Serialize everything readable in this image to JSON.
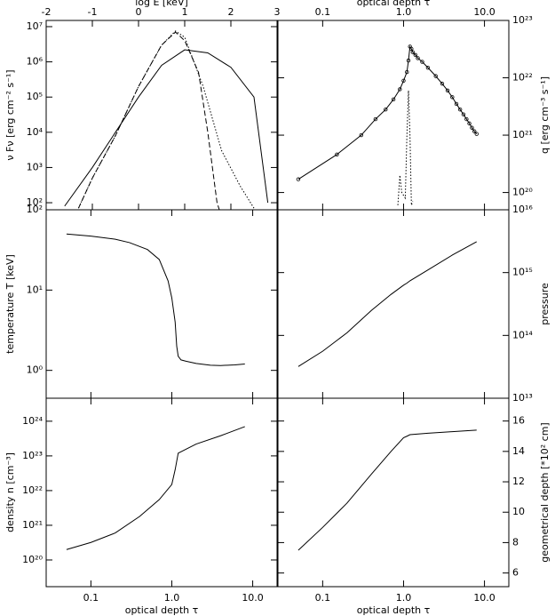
{
  "chart_data": [
    {
      "type": "line",
      "xlabel": "log E [keV]",
      "ylabel": "ν Fν [erg cm⁻² s⁻¹]",
      "xaxis": "top",
      "yaxis": "left",
      "xscale": "linear",
      "yscale": "log",
      "xlim": [
        -2,
        3
      ],
      "ylim": [
        63,
        15000000
      ],
      "xticks": [
        -2,
        -1,
        0,
        1,
        2,
        3
      ],
      "yticks": [
        {
          "value": 100,
          "label": "10²"
        },
        {
          "value": 1000,
          "label": "10³"
        },
        {
          "value": 10000,
          "label": "10⁴"
        },
        {
          "value": 100000,
          "label": "10⁵"
        },
        {
          "value": 1000000,
          "label": "10⁶"
        },
        {
          "value": 10000000,
          "label": "10⁷"
        }
      ],
      "series": [
        {
          "color": "#000000",
          "dash": "solid",
          "x": [
            -1.6,
            -1.0,
            -0.5,
            0,
            0.5,
            1,
            1.5,
            2,
            2.5,
            2.8
          ],
          "values": [
            80,
            1000,
            10000,
            100000,
            800000,
            2200000,
            1800000,
            700000,
            100000,
            100
          ]
        },
        {
          "color": "#000000",
          "dash": "dashed",
          "x": [
            -1.3,
            -1.0,
            -0.5,
            0,
            0.5,
            0.8,
            1,
            1.3,
            1.5,
            1.7,
            1.75
          ],
          "values": [
            70,
            500,
            8000,
            200000,
            3000000,
            7000000,
            4000000,
            500000,
            10000,
            100,
            63
          ]
        },
        {
          "color": "#000000",
          "dash": "dotted",
          "x": [
            -1.3,
            -1.0,
            -0.5,
            0,
            0.5,
            0.8,
            1,
            1.4,
            1.8,
            2.2,
            2.5
          ],
          "values": [
            70,
            500,
            8000,
            200000,
            3000000,
            7500000,
            5000000,
            200000,
            3000,
            300,
            70
          ]
        }
      ]
    },
    {
      "type": "line",
      "xlabel": "optical depth τ",
      "ylabel": "q [erg cm⁻³ s⁻¹]",
      "xaxis": "top",
      "yaxis": "right",
      "xscale": "log",
      "yscale": "log",
      "xlim": [
        0.028,
        20
      ],
      "ylim": [
        50000000000000000000,
        1e+23
      ],
      "xticks": [
        0.1,
        {
          "value": 1,
          "label": "1.0"
        },
        {
          "value": 10,
          "label": "10.0"
        }
      ],
      "yticks": [
        {
          "value": 1e+20,
          "label": "10²⁰"
        },
        {
          "value": 1e+21,
          "label": "10²¹"
        },
        {
          "value": 1e+22,
          "label": "10²²"
        },
        {
          "value": 1e+23,
          "label": "10²³"
        }
      ],
      "series": [
        {
          "color": "#000000",
          "dash": "solid",
          "marker": "circle",
          "x": [
            0.05,
            0.15,
            0.3,
            0.45,
            0.6,
            0.75,
            0.9,
            1.0,
            1.1,
            1.15,
            1.2,
            1.25,
            1.3,
            1.4,
            1.5,
            1.7,
            2.0,
            2.5,
            3.0,
            3.5,
            4.0,
            4.5,
            5.0,
            5.5,
            6.0,
            6.5,
            7.0,
            7.5,
            8.0
          ],
          "values": [
            1.7e+20,
            4.6e+20,
            1e+21,
            1.9e+21,
            2.8e+21,
            4.2e+21,
            6.3e+21,
            8.9e+21,
            1.26e+22,
            2e+22,
            3.5e+22,
            3.2e+22,
            2.8e+22,
            2.5e+22,
            2.2e+22,
            1.9e+22,
            1.5e+22,
            1.07e+22,
            7.9e+21,
            6e+21,
            4.6e+21,
            3.5e+21,
            2.8e+21,
            2.3e+21,
            1.9e+21,
            1.6e+21,
            1.35e+21,
            1.17e+21,
            1.05e+21
          ]
        },
        {
          "color": "#000000",
          "dash": "dotted",
          "x": [
            0.85,
            0.9,
            0.95,
            1.05,
            1.1,
            1.15,
            1.2,
            1.25,
            1.3
          ],
          "values": [
            60000000000000000000,
            2e+20,
            1e+20,
            80000000000000000000,
            1e+21,
            6e+21,
            1e+21,
            60000000000000000000,
            70000000000000000000
          ]
        }
      ]
    },
    {
      "type": "line",
      "ylabel": "temperature T [keV]",
      "xaxis": "none",
      "yaxis": "left",
      "xscale": "log",
      "yscale": "log",
      "xlim": [
        0.028,
        20
      ],
      "ylim": [
        0.45,
        100
      ],
      "xticks": [
        0.1,
        1,
        10
      ],
      "yticks": [
        {
          "value": 1,
          "label": "10⁰"
        },
        {
          "value": 10,
          "label": "10¹"
        },
        {
          "value": 100,
          "label": "10²"
        }
      ],
      "x": [
        0.05,
        0.1,
        0.2,
        0.3,
        0.5,
        0.7,
        0.9,
        1.0,
        1.1,
        1.15,
        1.2,
        1.3,
        1.5,
        2,
        3,
        4,
        6,
        8
      ],
      "series": [
        {
          "color": "#000000",
          "dash": "solid",
          "values": [
            50,
            47,
            43,
            39,
            32,
            24,
            13,
            8,
            4,
            2,
            1.5,
            1.35,
            1.3,
            1.22,
            1.16,
            1.15,
            1.17,
            1.2
          ]
        }
      ]
    },
    {
      "type": "line",
      "ylabel": "pressure",
      "xaxis": "none",
      "yaxis": "right",
      "xscale": "log",
      "yscale": "log",
      "xlim": [
        0.028,
        20
      ],
      "ylim": [
        10000000000000,
        10000000000000000
      ],
      "xticks": [
        0.1,
        1,
        10
      ],
      "yticks": [
        {
          "value": 10000000000000,
          "label": "10¹³"
        },
        {
          "value": 100000000000000,
          "label": "10¹⁴"
        },
        {
          "value": 1000000000000000,
          "label": "10¹⁵"
        },
        {
          "value": 10000000000000000,
          "label": "10¹⁶"
        }
      ],
      "x": [
        0.05,
        0.1,
        0.2,
        0.4,
        0.7,
        1.0,
        1.1,
        1.2,
        2,
        4,
        8
      ],
      "series": [
        {
          "color": "#000000",
          "dash": "solid",
          "values": [
            32000000000000,
            56000000000000,
            110000000000000,
            250000000000000,
            450000000000000,
            630000000000000,
            680000000000000,
            740000000000000,
            1100000000000000,
            1900000000000000,
            3100000000000000
          ]
        }
      ]
    },
    {
      "type": "line",
      "xlabel": "optical depth τ",
      "ylabel": "density n [cm⁻³]",
      "xaxis": "bottom",
      "yaxis": "left",
      "xscale": "log",
      "yscale": "log",
      "xlim": [
        0.028,
        20
      ],
      "ylim": [
        17000000000000000000,
        4.6e+24
      ],
      "xticks": [
        0.1,
        {
          "value": 1,
          "label": "1.0"
        },
        {
          "value": 10,
          "label": "10.0"
        }
      ],
      "yticks": [
        {
          "value": 1e+20,
          "label": "10²⁰"
        },
        {
          "value": 1e+21,
          "label": "10²¹"
        },
        {
          "value": 1e+22,
          "label": "10²²"
        },
        {
          "value": 1e+23,
          "label": "10²³"
        },
        {
          "value": 1e+24,
          "label": "10²⁴"
        }
      ],
      "x": [
        0.05,
        0.1,
        0.2,
        0.4,
        0.7,
        1.0,
        1.1,
        1.2,
        2,
        4,
        8
      ],
      "series": [
        {
          "color": "#000000",
          "dash": "solid",
          "values": [
            2e+20,
            3.2e+20,
            6e+20,
            1.8e+21,
            5.5e+21,
            1.5e+22,
            4e+22,
            1.2e+23,
            2.2e+23,
            3.8e+23,
            7e+23
          ]
        }
      ]
    },
    {
      "type": "line",
      "xlabel": "optical depth τ",
      "ylabel": "geometrical depth [*10² cm]",
      "xaxis": "bottom",
      "yaxis": "right",
      "xscale": "log",
      "yscale": "linear",
      "xlim": [
        0.028,
        20
      ],
      "ylim": [
        5.1,
        17.5
      ],
      "xticks": [
        0.1,
        {
          "value": 1,
          "label": "1.0"
        },
        {
          "value": 10,
          "label": "10.0"
        }
      ],
      "yticks": [
        6,
        8,
        10,
        12,
        14,
        16
      ],
      "x": [
        0.05,
        0.1,
        0.2,
        0.4,
        0.7,
        1.0,
        1.1,
        1.2,
        2,
        4,
        8
      ],
      "series": [
        {
          "color": "#000000",
          "dash": "solid",
          "values": [
            7.5,
            9.0,
            10.6,
            12.5,
            14.0,
            14.9,
            15.0,
            15.1,
            15.2,
            15.3,
            15.4
          ]
        }
      ]
    }
  ]
}
